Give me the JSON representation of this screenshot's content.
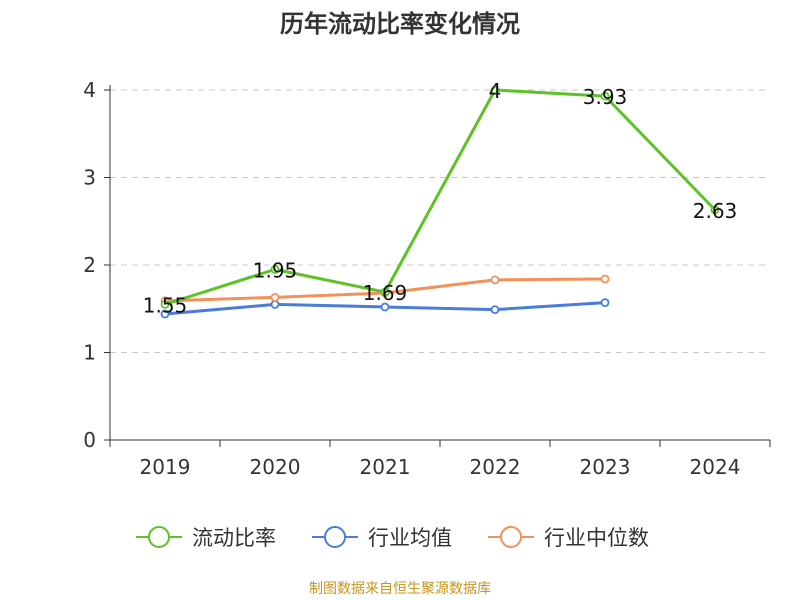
{
  "chart_data": {
    "type": "line",
    "title": "历年流动比率变化情况",
    "categories": [
      "2019",
      "2020",
      "2021",
      "2022",
      "2023",
      "2024"
    ],
    "yticks": [
      "0",
      "1",
      "2",
      "3",
      "4"
    ],
    "ylim": [
      0,
      4.3
    ],
    "grid": true,
    "legend_position": "bottom",
    "series": [
      {
        "name": "流动比率",
        "color": "#5cc227",
        "values": [
          1.55,
          1.95,
          1.69,
          4,
          3.93,
          2.63
        ],
        "labels": [
          "1.55",
          "1.95",
          "1.69",
          "4",
          "3.93",
          "2.63"
        ]
      },
      {
        "name": "行业均值",
        "color": "#4a7cdc",
        "values": [
          1.44,
          1.55,
          1.52,
          1.49,
          1.57,
          null
        ]
      },
      {
        "name": "行业中位数",
        "color": "#f3915a",
        "values": [
          1.59,
          1.63,
          1.68,
          1.83,
          1.84,
          null
        ]
      }
    ]
  },
  "footer": {
    "source": "制图数据来自恒生聚源数据库",
    "color": "#c8951e"
  }
}
